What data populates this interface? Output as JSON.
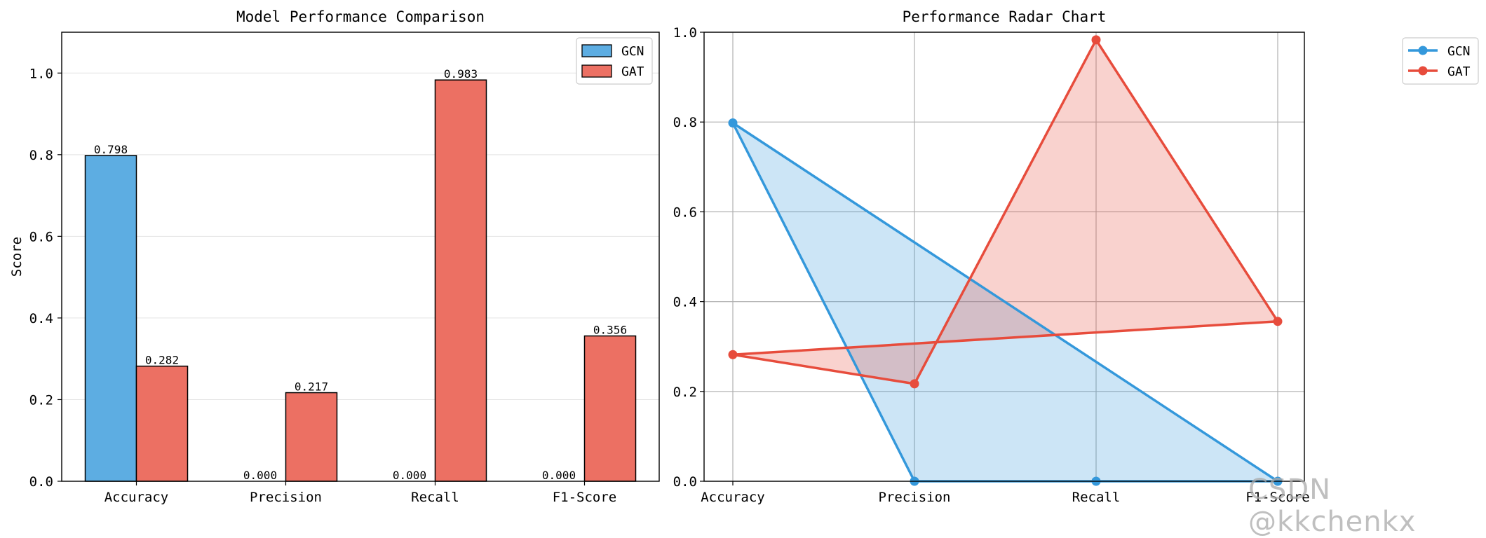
{
  "chart_data": [
    {
      "type": "bar",
      "title": "Model Performance Comparison",
      "xlabel": "",
      "ylabel": "Score",
      "ylim": [
        0,
        1.1
      ],
      "yticks": [
        "0.0",
        "0.2",
        "0.4",
        "0.6",
        "0.8",
        "1.0"
      ],
      "categories": [
        "Accuracy",
        "Precision",
        "Recall",
        "F1-Score"
      ],
      "series": [
        {
          "name": "GCN",
          "values": [
            0.798,
            0.0,
            0.0,
            0.0
          ],
          "labels": [
            "0.798",
            "0.000",
            "0.000",
            "0.000"
          ],
          "color": "#5DADE2"
        },
        {
          "name": "GAT",
          "values": [
            0.282,
            0.217,
            0.983,
            0.356
          ],
          "labels": [
            "0.282",
            "0.217",
            "0.983",
            "0.356"
          ],
          "color": "#EC7063"
        }
      ],
      "grid": "y",
      "legend": "top-right"
    },
    {
      "type": "line",
      "title": "Performance Radar Chart",
      "ylim": [
        0,
        1.0
      ],
      "yticks": [
        "0.0",
        "0.2",
        "0.4",
        "0.6",
        "0.8",
        "1.0"
      ],
      "categories": [
        "Accuracy",
        "Precision",
        "Recall",
        "F1-Score"
      ],
      "series": [
        {
          "name": "GCN",
          "values": [
            0.798,
            0.0,
            0.0,
            0.0
          ],
          "color": "#3498DB"
        },
        {
          "name": "GAT",
          "values": [
            0.282,
            0.217,
            0.983,
            0.356
          ],
          "color": "#E74C3C"
        }
      ],
      "grid": "both",
      "legend": "top-right-outside"
    }
  ],
  "watermark": "CSDN @kkchenkx"
}
